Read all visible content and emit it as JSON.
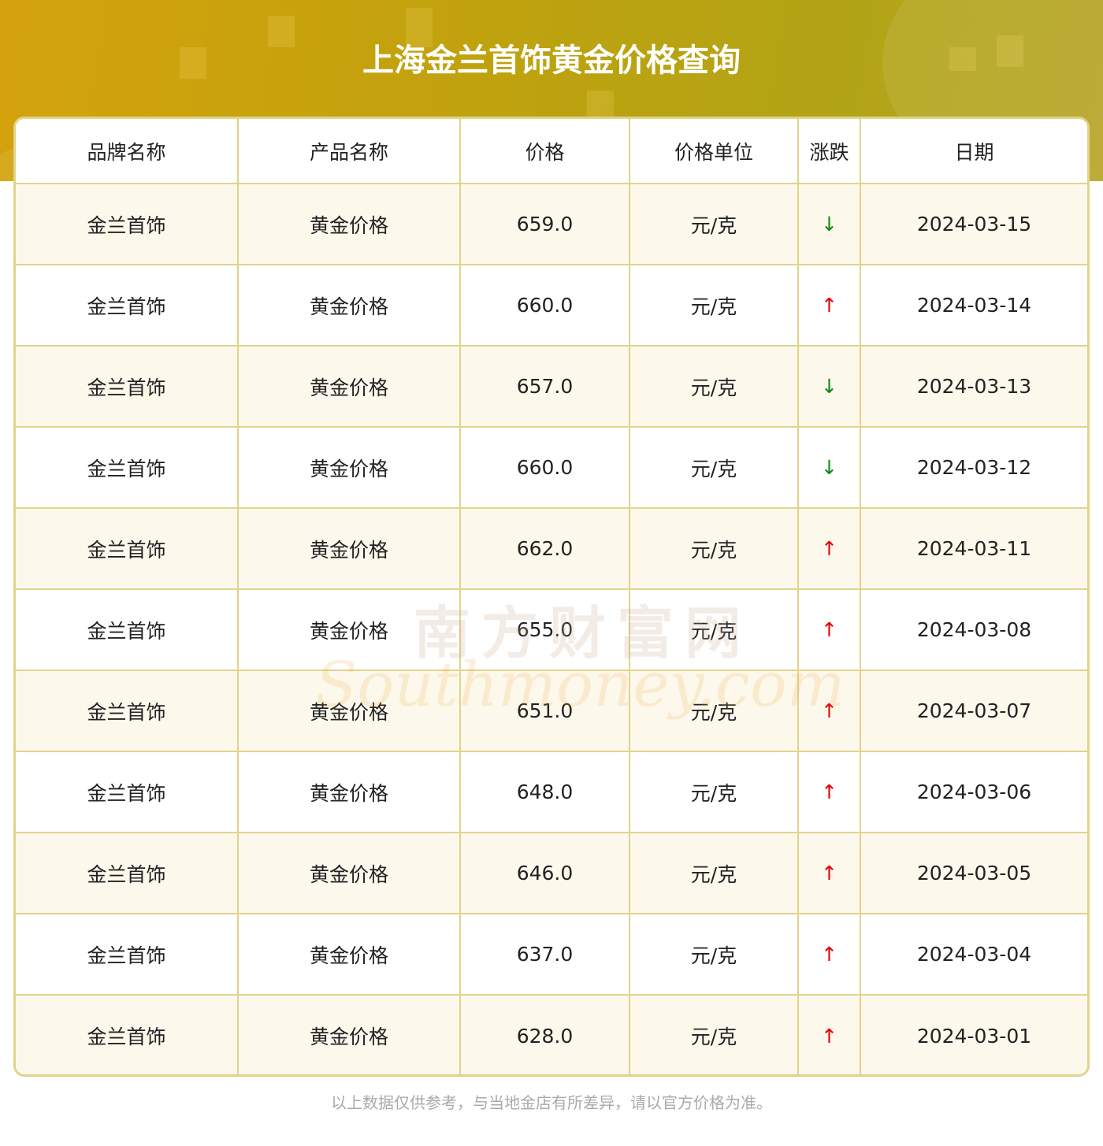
{
  "header": {
    "title": "上海金兰首饰黄金价格查询"
  },
  "table": {
    "columns": [
      "品牌名称",
      "产品名称",
      "价格",
      "价格单位",
      "涨跌",
      "日期"
    ],
    "rows": [
      {
        "brand": "金兰首饰",
        "product": "黄金价格",
        "price": "659.0",
        "unit": "元/克",
        "change": "↓",
        "direction": "down",
        "date": "2024-03-15"
      },
      {
        "brand": "金兰首饰",
        "product": "黄金价格",
        "price": "660.0",
        "unit": "元/克",
        "change": "↑",
        "direction": "up",
        "date": "2024-03-14"
      },
      {
        "brand": "金兰首饰",
        "product": "黄金价格",
        "price": "657.0",
        "unit": "元/克",
        "change": "↓",
        "direction": "down",
        "date": "2024-03-13"
      },
      {
        "brand": "金兰首饰",
        "product": "黄金价格",
        "price": "660.0",
        "unit": "元/克",
        "change": "↓",
        "direction": "down",
        "date": "2024-03-12"
      },
      {
        "brand": "金兰首饰",
        "product": "黄金价格",
        "price": "662.0",
        "unit": "元/克",
        "change": "↑",
        "direction": "up",
        "date": "2024-03-11"
      },
      {
        "brand": "金兰首饰",
        "product": "黄金价格",
        "price": "655.0",
        "unit": "元/克",
        "change": "↑",
        "direction": "up",
        "date": "2024-03-08"
      },
      {
        "brand": "金兰首饰",
        "product": "黄金价格",
        "price": "651.0",
        "unit": "元/克",
        "change": "↑",
        "direction": "up",
        "date": "2024-03-07"
      },
      {
        "brand": "金兰首饰",
        "product": "黄金价格",
        "price": "648.0",
        "unit": "元/克",
        "change": "↑",
        "direction": "up",
        "date": "2024-03-06"
      },
      {
        "brand": "金兰首饰",
        "product": "黄金价格",
        "price": "646.0",
        "unit": "元/克",
        "change": "↑",
        "direction": "up",
        "date": "2024-03-05"
      },
      {
        "brand": "金兰首饰",
        "product": "黄金价格",
        "price": "637.0",
        "unit": "元/克",
        "change": "↑",
        "direction": "up",
        "date": "2024-03-04"
      },
      {
        "brand": "金兰首饰",
        "product": "黄金价格",
        "price": "628.0",
        "unit": "元/克",
        "change": "↑",
        "direction": "up",
        "date": "2024-03-01"
      }
    ]
  },
  "watermark": {
    "cn": "南方财富网",
    "en": "Southmoney.com"
  },
  "footer": {
    "note": "以上数据仅供参考，与当地金店有所差异，请以官方价格为准。"
  },
  "colors": {
    "banner": "#c4a410",
    "border": "#e0d48a",
    "row_alt": "#fdf8ec",
    "up": "#e60000",
    "down": "#0a8a0a",
    "footer": "#aaaaaa"
  }
}
